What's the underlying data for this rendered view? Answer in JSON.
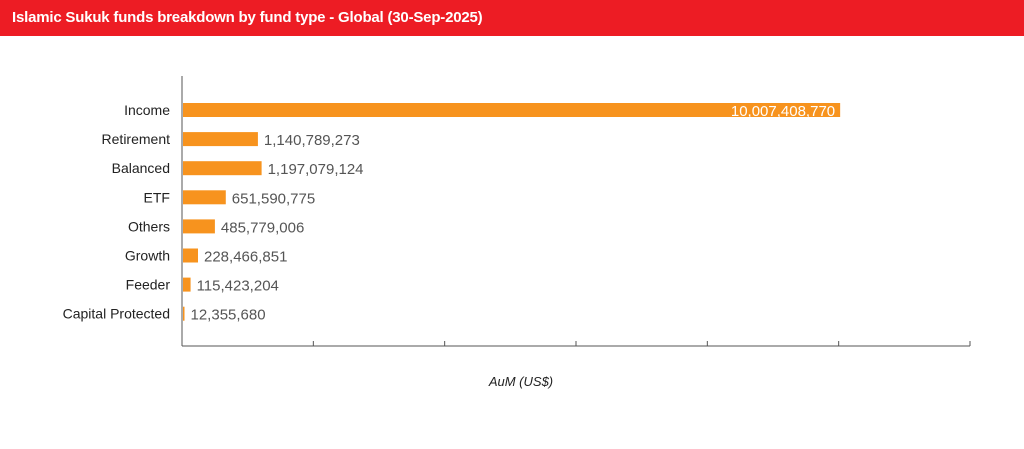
{
  "title": "Islamic Sukuk funds breakdown by fund type - Global (30-Sep-2025)",
  "colors": {
    "header": "#ed1c24",
    "bar": "#f7931e"
  },
  "chart_data": {
    "type": "bar",
    "orientation": "horizontal",
    "categories": [
      "Income",
      "Retirement",
      "Balanced",
      "ETF",
      "Others",
      "Growth",
      "Feeder",
      "Capital Protected"
    ],
    "values": [
      10007408770,
      1140789273,
      1197079124,
      651590775,
      485779006,
      228466851,
      115423204,
      12355680
    ],
    "data_labels": [
      "10,007,408,770",
      "1,140,789,273",
      "1,197,079,124",
      "651,590,775",
      "485,779,006",
      "228,466,851",
      "115,423,204",
      "12,355,680"
    ],
    "xlabel": "AuM (US$)",
    "xlim": [
      0,
      12000000000
    ],
    "grid": false,
    "legend": "none"
  }
}
